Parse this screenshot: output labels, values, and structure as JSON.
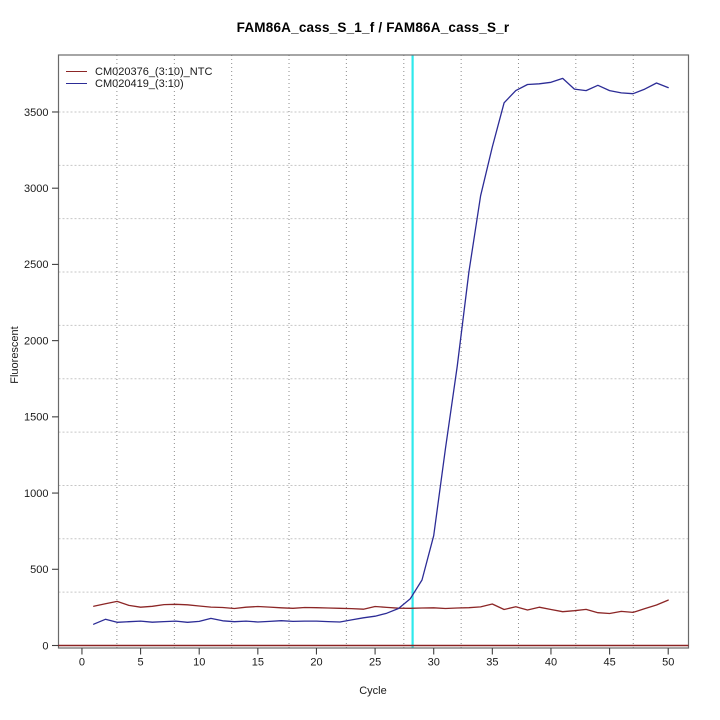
{
  "chart_data": {
    "type": "line",
    "title": "FAM86A_cass_S_1_f / FAM86A_cass_S_r",
    "xlabel": "Cycle",
    "ylabel": "Fluorescent",
    "legend_position": "top-left",
    "xlim": [
      -2.0,
      51.73
    ],
    "ylim": [
      -16.4,
      3873.8
    ],
    "xticks": [
      0,
      5,
      10,
      15,
      20,
      25,
      30,
      35,
      40,
      45,
      50
    ],
    "yticks": [
      0,
      500,
      1000,
      1500,
      2000,
      2500,
      3000,
      3500
    ],
    "grid": {
      "h_values": [
        350,
        700,
        1050,
        1400,
        1750,
        2100,
        2450,
        2800,
        3150,
        3500
      ],
      "v_values": [
        2.98,
        7.88,
        12.77,
        17.66,
        22.55,
        27.45,
        32.34,
        37.23,
        42.12,
        47.02
      ],
      "h_color": "#c6c6c6",
      "v_color": "#8c8c8c"
    },
    "threshold_line": {
      "x": 28.2,
      "color": "#2fe9ec"
    },
    "zero_line": {
      "y": 0,
      "color": "#8b2323"
    },
    "axis_color": "#6a6a6a",
    "tick_color": "#404040",
    "x": [
      1,
      2,
      3,
      4,
      5,
      6,
      7,
      8,
      9,
      10,
      11,
      12,
      13,
      14,
      15,
      16,
      17,
      18,
      19,
      20,
      21,
      22,
      23,
      24,
      25,
      26,
      27,
      28,
      29,
      30,
      31,
      32,
      33,
      34,
      35,
      36,
      37,
      38,
      39,
      40,
      41,
      42,
      43,
      44,
      45,
      46,
      47,
      48,
      49,
      50
    ],
    "series": [
      {
        "name": "CM020376_(3:10)_NTC",
        "color": "#8c2626",
        "values": [
          258,
          274,
          289,
          263,
          251,
          257,
          268,
          270,
          267,
          259,
          252,
          249,
          243,
          251,
          256,
          252,
          247,
          244,
          249,
          248,
          246,
          244,
          242,
          238,
          256,
          250,
          245,
          244,
          246,
          247,
          243,
          246,
          248,
          253,
          272,
          236,
          254,
          233,
          251,
          236,
          222,
          228,
          237,
          215,
          210,
          224,
          217,
          242,
          266,
          298
        ]
      },
      {
        "name": "CM020419_(3:10)",
        "color": "#2c2c96",
        "values": [
          140,
          172,
          152,
          156,
          160,
          153,
          157,
          160,
          152,
          158,
          178,
          162,
          156,
          160,
          154,
          158,
          163,
          158,
          160,
          160,
          157,
          154,
          168,
          182,
          192,
          212,
          243,
          307,
          430,
          720,
          1290,
          1830,
          2450,
          2950,
          3270,
          3560,
          3640,
          3680,
          3685,
          3695,
          3720,
          3650,
          3640,
          3675,
          3640,
          3625,
          3620,
          3650,
          3690,
          3660
        ]
      }
    ]
  }
}
